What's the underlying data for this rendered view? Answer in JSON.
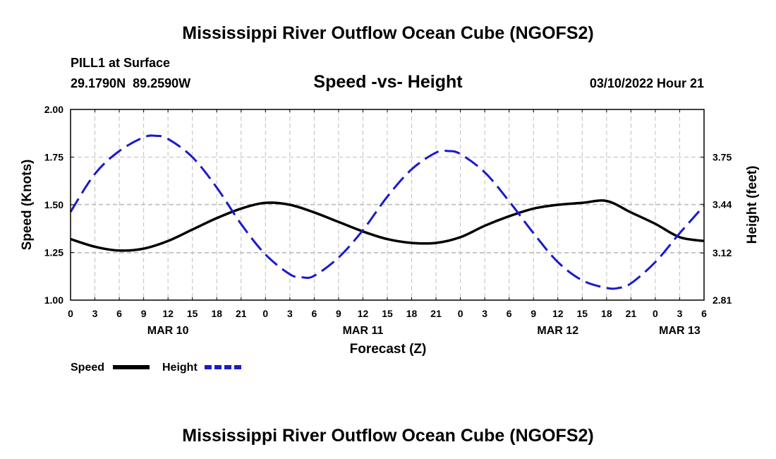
{
  "header": {
    "title": "Mississippi River Outflow Ocean Cube (NGOFS2)",
    "station": "PILL1 at Surface",
    "coords": "29.1790N  89.2590W",
    "datetime": "03/10/2022 Hour 21",
    "footer_title": "Mississippi River Outflow Ocean Cube (NGOFS2)"
  },
  "chart_data": {
    "type": "line",
    "title": "Speed -vs- Height",
    "xlabel": "Forecast (Z)",
    "ylabel_left": "Speed (Knots)",
    "ylabel_right": "Height (feet)",
    "x_unit": "hours from MAR 10 00Z",
    "xlim": [
      0,
      78
    ],
    "ylim_left": [
      1.0,
      2.0
    ],
    "y_ticks_left": [
      "1.00",
      "1.25",
      "1.50",
      "1.75",
      "2.00"
    ],
    "y_ticks_right": [
      "2.81",
      "3.12",
      "3.44",
      "3.75"
    ],
    "y_ticks_right_values": [
      2.81,
      3.12,
      3.44,
      3.75
    ],
    "right_axis_map": {
      "left": [
        1.0,
        1.75
      ],
      "right": [
        2.81,
        3.75
      ]
    },
    "x_tick_labels": [
      "0",
      "3",
      "6",
      "9",
      "12",
      "15",
      "18",
      "21",
      "0",
      "3",
      "6",
      "9",
      "12",
      "15",
      "18",
      "21",
      "0",
      "3",
      "6",
      "9",
      "12",
      "15",
      "18",
      "21",
      "0",
      "3",
      "6"
    ],
    "date_labels": [
      {
        "label": "MAR 10",
        "hour": 12
      },
      {
        "label": "MAR 11",
        "hour": 36
      },
      {
        "label": "MAR 12",
        "hour": 60
      },
      {
        "label": "MAR 13",
        "hour": 75
      }
    ],
    "grid": true,
    "legend": "bottom-left",
    "series": [
      {
        "name": "Speed",
        "axis": "left",
        "color": "#000000",
        "style": "solid",
        "x": [
          0,
          3,
          6,
          9,
          12,
          15,
          18,
          21,
          24,
          27,
          30,
          33,
          36,
          39,
          42,
          45,
          48,
          51,
          54,
          57,
          60,
          63,
          66,
          69,
          72,
          75,
          78
        ],
        "values": [
          1.32,
          1.28,
          1.26,
          1.27,
          1.31,
          1.37,
          1.43,
          1.48,
          1.51,
          1.5,
          1.46,
          1.41,
          1.36,
          1.32,
          1.3,
          1.3,
          1.33,
          1.39,
          1.44,
          1.48,
          1.5,
          1.51,
          1.52,
          1.46,
          1.4,
          1.33,
          1.31
        ]
      },
      {
        "name": "Height",
        "axis": "right",
        "color": "#1a1acc",
        "style": "dashed",
        "x": [
          0,
          3,
          6,
          9,
          10.5,
          12,
          15,
          18,
          21,
          24,
          27,
          28.5,
          30,
          33,
          36,
          39,
          42,
          45,
          46.5,
          48,
          51,
          54,
          57,
          60,
          63,
          66,
          67.5,
          69,
          72,
          75,
          78
        ],
        "values": [
          3.39,
          3.64,
          3.79,
          3.88,
          3.89,
          3.87,
          3.75,
          3.55,
          3.31,
          3.11,
          2.98,
          2.96,
          2.97,
          3.09,
          3.27,
          3.49,
          3.67,
          3.78,
          3.79,
          3.77,
          3.65,
          3.46,
          3.25,
          3.06,
          2.94,
          2.89,
          2.89,
          2.92,
          3.06,
          3.25,
          3.43
        ]
      }
    ]
  },
  "colors": {
    "speed": "#000000",
    "height": "#1a1acc",
    "grid": "#bfbfbf"
  }
}
